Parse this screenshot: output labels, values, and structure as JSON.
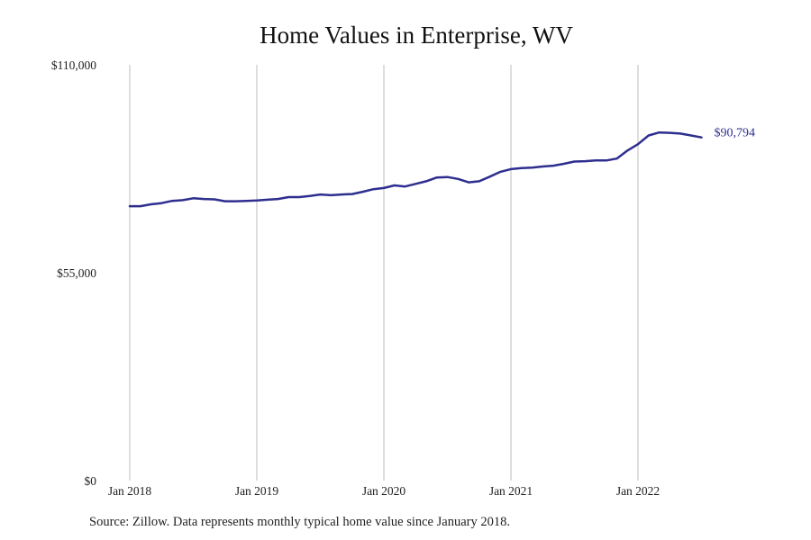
{
  "chart_data": {
    "type": "line",
    "title": "Home Values in Enterprise, WV",
    "xlabel": "",
    "ylabel": "",
    "ylim": [
      0,
      110000
    ],
    "y_ticks": [
      "$0",
      "$55,000",
      "$110,000"
    ],
    "y_tick_values": [
      0,
      55000,
      110000
    ],
    "x_ticks": [
      "Jan 2018",
      "Jan 2019",
      "Jan 2020",
      "Jan 2021",
      "Jan 2022"
    ],
    "grid": "vertical",
    "line_color": "#2e2e8f",
    "end_label": "$90,794",
    "series": [
      {
        "x": [
          "2018-01",
          "2018-02",
          "2018-03",
          "2018-04",
          "2018-05",
          "2018-06",
          "2018-07",
          "2018-08",
          "2018-09",
          "2018-10",
          "2018-11",
          "2018-12",
          "2019-01",
          "2019-02",
          "2019-03",
          "2019-04",
          "2019-05",
          "2019-06",
          "2019-07",
          "2019-08",
          "2019-09",
          "2019-10",
          "2019-11",
          "2019-12",
          "2020-01",
          "2020-02",
          "2020-03",
          "2020-04",
          "2020-05",
          "2020-06",
          "2020-07",
          "2020-08",
          "2020-09",
          "2020-10",
          "2020-11",
          "2020-12",
          "2021-01",
          "2021-02",
          "2021-03",
          "2021-04",
          "2021-05",
          "2021-06",
          "2021-07",
          "2021-08",
          "2021-09",
          "2021-10",
          "2021-11",
          "2021-12",
          "2022-01",
          "2022-02",
          "2022-03",
          "2022-04",
          "2022-05",
          "2022-06",
          "2022-07"
        ],
        "values": [
          72600,
          72600,
          73100,
          73400,
          74000,
          74200,
          74700,
          74500,
          74400,
          73900,
          73900,
          74000,
          74100,
          74300,
          74500,
          75000,
          75000,
          75300,
          75700,
          75500,
          75700,
          75800,
          76400,
          77100,
          77400,
          78100,
          77800,
          78500,
          79200,
          80200,
          80300,
          79800,
          78900,
          79200,
          80400,
          81700,
          82400,
          82700,
          82800,
          83100,
          83300,
          83800,
          84400,
          84500,
          84700,
          84700,
          85200,
          87300,
          89000,
          91300,
          92100,
          92000,
          91800,
          91300,
          90794
        ]
      }
    ]
  },
  "footer": {
    "source": "Source: Zillow. Data represents monthly typical home value since January 2018."
  }
}
